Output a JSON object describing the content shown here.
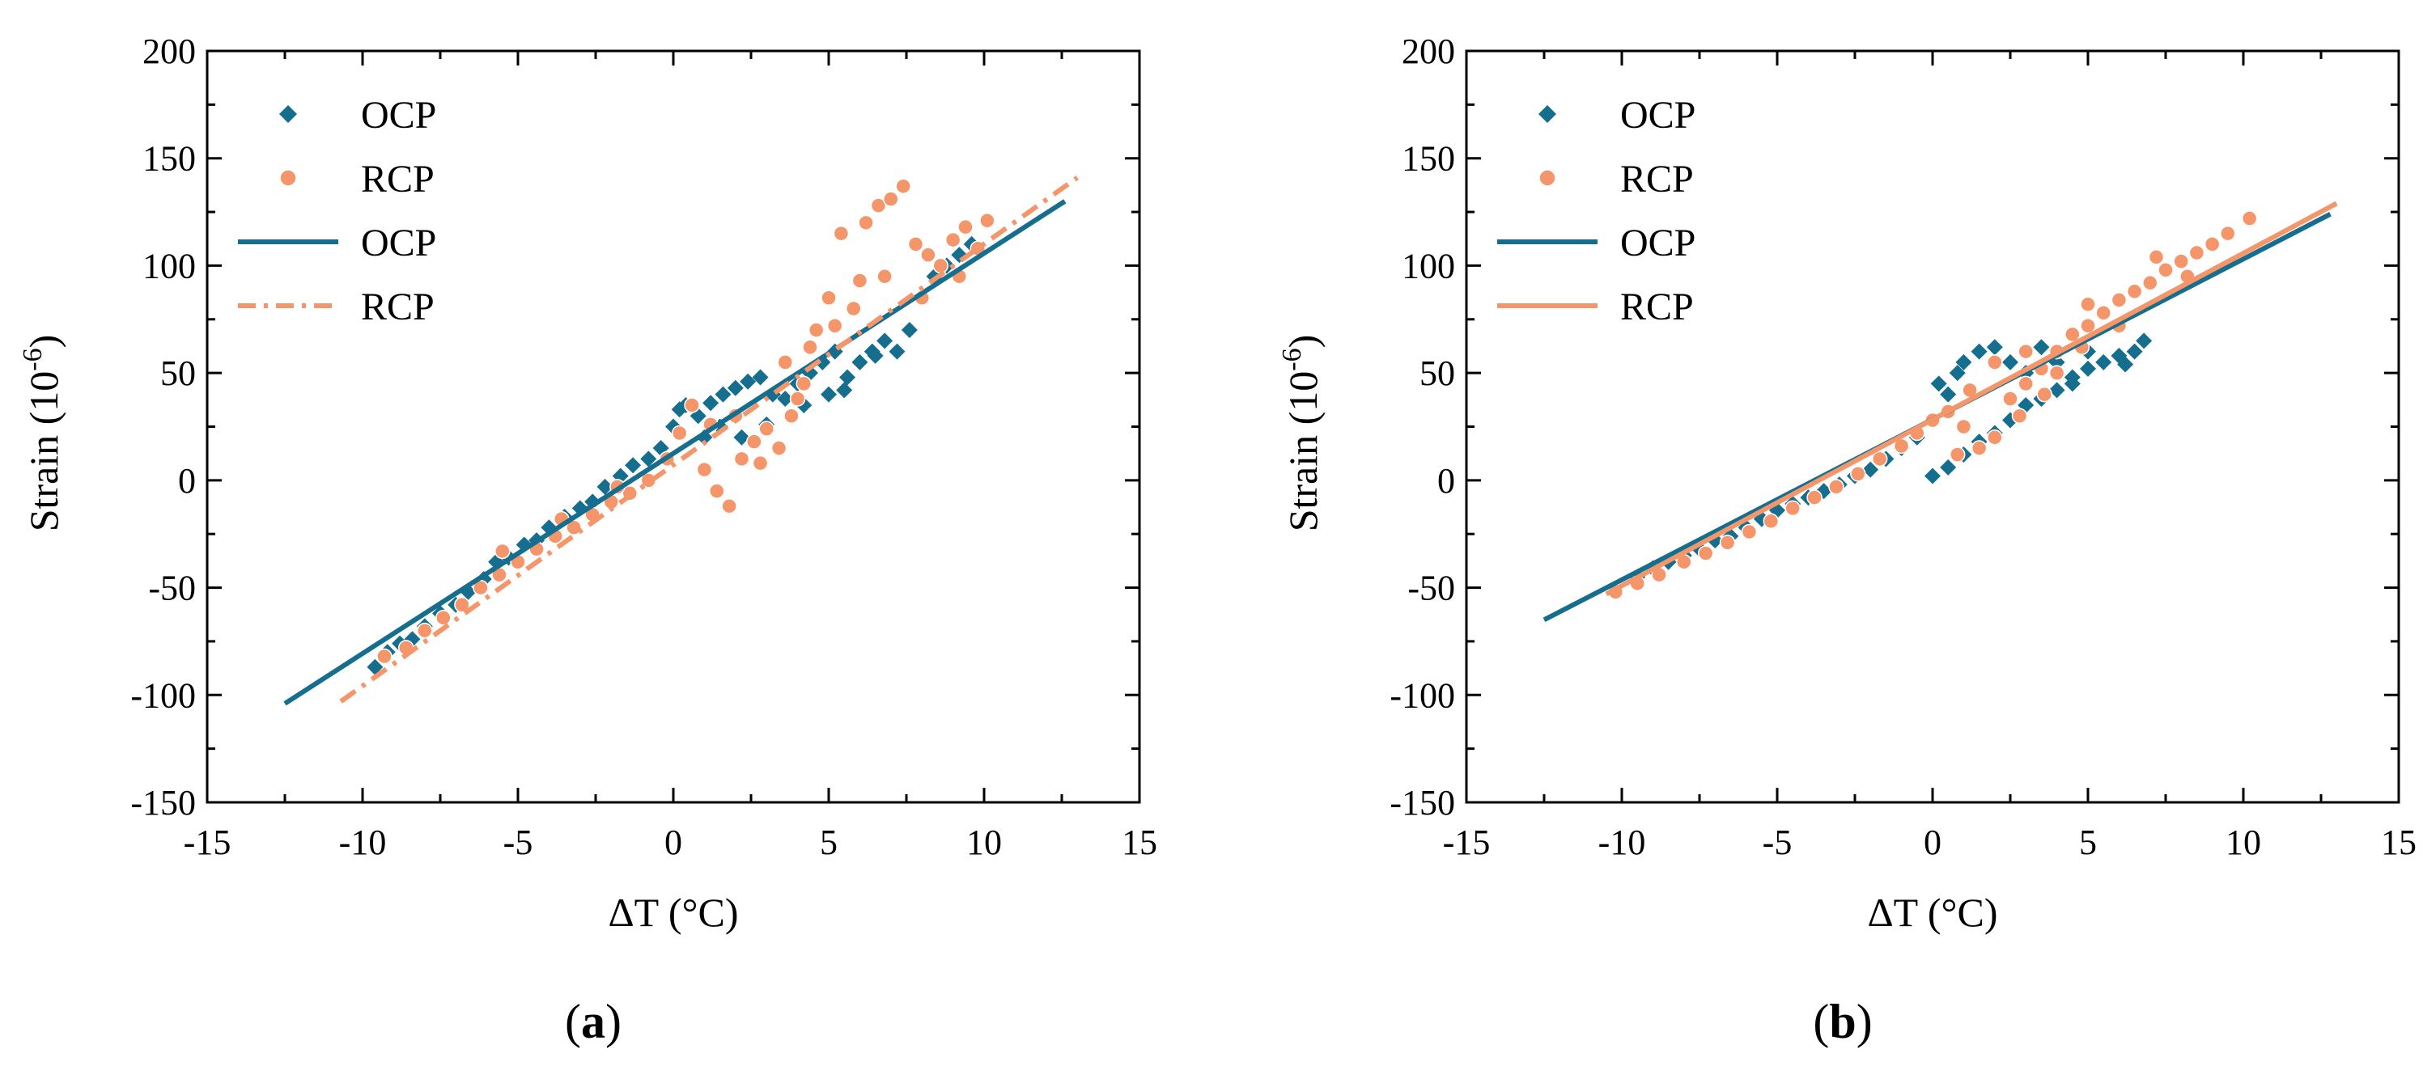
{
  "figure": {
    "panels": [
      {
        "label_open": "(",
        "label_letter": "a",
        "label_close": ")"
      },
      {
        "label_open": "(",
        "label_letter": "b",
        "label_close": ")"
      }
    ]
  },
  "colors": {
    "ocp": "#166E8E",
    "rcp": "#F4956A",
    "axis": "#000000"
  },
  "chart_data": [
    {
      "type": "scatter",
      "panel": "a",
      "xlabel": "ΔT (°C)",
      "ylabel_base": "Strain (10",
      "ylabel_exp": "-6",
      "ylabel_close": ")",
      "xlim": [
        -15,
        15
      ],
      "ylim": [
        -150,
        200
      ],
      "xticks": [
        -15,
        -10,
        -5,
        0,
        5,
        10,
        15
      ],
      "yticks": [
        -150,
        -100,
        -50,
        0,
        50,
        100,
        150,
        200
      ],
      "legend": {
        "position": "top-left",
        "entries": [
          {
            "label": "OCP",
            "kind": "marker",
            "marker": "diamond",
            "series": "ocp"
          },
          {
            "label": "RCP",
            "kind": "marker",
            "marker": "circle",
            "series": "rcp"
          },
          {
            "label": "OCP",
            "kind": "line",
            "style": "solid",
            "series": "ocp"
          },
          {
            "label": "RCP",
            "kind": "line",
            "style": "dashdot",
            "series": "rcp"
          }
        ]
      },
      "series": [
        {
          "name": "OCP",
          "kind": "scatter",
          "marker": "diamond",
          "points": [
            [
              -9.6,
              -87
            ],
            [
              -9.2,
              -80
            ],
            [
              -8.8,
              -76
            ],
            [
              -8.4,
              -74
            ],
            [
              -8.0,
              -68
            ],
            [
              -7.5,
              -62
            ],
            [
              -7.0,
              -58
            ],
            [
              -6.6,
              -52
            ],
            [
              -6.1,
              -46
            ],
            [
              -5.7,
              -38
            ],
            [
              -5.3,
              -36
            ],
            [
              -4.8,
              -30
            ],
            [
              -4.4,
              -28
            ],
            [
              -4.0,
              -22
            ],
            [
              -3.5,
              -17
            ],
            [
              -3.0,
              -13
            ],
            [
              -2.6,
              -10
            ],
            [
              -2.2,
              -3
            ],
            [
              -1.7,
              2
            ],
            [
              -1.3,
              7
            ],
            [
              -0.8,
              10
            ],
            [
              -0.4,
              15
            ],
            [
              0.0,
              25
            ],
            [
              0.2,
              33
            ],
            [
              0.4,
              35
            ],
            [
              0.8,
              30
            ],
            [
              1.2,
              36
            ],
            [
              1.6,
              40
            ],
            [
              2.0,
              43
            ],
            [
              2.4,
              46
            ],
            [
              2.8,
              48
            ],
            [
              3.2,
              40
            ],
            [
              3.6,
              38
            ],
            [
              4.0,
              45
            ],
            [
              4.4,
              50
            ],
            [
              4.8,
              55
            ],
            [
              5.2,
              60
            ],
            [
              5.6,
              48
            ],
            [
              6.0,
              55
            ],
            [
              6.4,
              60
            ],
            [
              6.8,
              65
            ],
            [
              7.2,
              60
            ],
            [
              7.6,
              70
            ],
            [
              8.0,
              85
            ],
            [
              8.4,
              95
            ],
            [
              8.8,
              100
            ],
            [
              9.2,
              105
            ],
            [
              9.6,
              110
            ],
            [
              1.0,
              20
            ],
            [
              1.5,
              25
            ],
            [
              2.2,
              20
            ],
            [
              3.0,
              26
            ],
            [
              4.2,
              35
            ],
            [
              5.0,
              40
            ],
            [
              5.5,
              42
            ],
            [
              6.5,
              58
            ]
          ]
        },
        {
          "name": "RCP",
          "kind": "scatter",
          "marker": "circle",
          "points": [
            [
              -9.3,
              -82
            ],
            [
              -8.6,
              -78
            ],
            [
              -8.0,
              -70
            ],
            [
              -7.4,
              -64
            ],
            [
              -6.8,
              -58
            ],
            [
              -6.2,
              -50
            ],
            [
              -5.6,
              -44
            ],
            [
              -5.0,
              -38
            ],
            [
              -4.4,
              -32
            ],
            [
              -3.8,
              -26
            ],
            [
              -3.2,
              -22
            ],
            [
              -2.6,
              -16
            ],
            [
              -2.0,
              -10
            ],
            [
              -1.4,
              -6
            ],
            [
              -0.8,
              0
            ],
            [
              -0.2,
              10
            ],
            [
              0.2,
              22
            ],
            [
              0.6,
              35
            ],
            [
              1.0,
              5
            ],
            [
              1.4,
              -5
            ],
            [
              1.8,
              -12
            ],
            [
              2.2,
              10
            ],
            [
              2.6,
              18
            ],
            [
              3.0,
              24
            ],
            [
              3.4,
              15
            ],
            [
              3.8,
              30
            ],
            [
              4.2,
              45
            ],
            [
              4.6,
              70
            ],
            [
              5.0,
              85
            ],
            [
              5.4,
              115
            ],
            [
              5.8,
              80
            ],
            [
              6.2,
              120
            ],
            [
              6.6,
              128
            ],
            [
              7.0,
              131
            ],
            [
              7.4,
              137
            ],
            [
              7.8,
              110
            ],
            [
              8.2,
              105
            ],
            [
              8.6,
              100
            ],
            [
              9.0,
              112
            ],
            [
              9.4,
              118
            ],
            [
              9.8,
              108
            ],
            [
              10.1,
              121
            ],
            [
              -5.5,
              -33
            ],
            [
              -3.6,
              -18
            ],
            [
              -1.8,
              -3
            ],
            [
              2.0,
              30
            ],
            [
              3.6,
              55
            ],
            [
              4.4,
              62
            ],
            [
              5.2,
              72
            ],
            [
              6.0,
              93
            ],
            [
              6.8,
              95
            ],
            [
              8.0,
              85
            ],
            [
              9.2,
              95
            ],
            [
              1.2,
              26
            ],
            [
              2.8,
              8
            ],
            [
              4.0,
              38
            ]
          ]
        },
        {
          "name": "OCP",
          "kind": "line",
          "style": "solid",
          "points": [
            [
              -12.5,
              -104
            ],
            [
              12.6,
              130
            ]
          ]
        },
        {
          "name": "RCP",
          "kind": "line",
          "style": "dashdot",
          "points": [
            [
              -10.7,
              -103
            ],
            [
              13.0,
              141
            ]
          ]
        }
      ]
    },
    {
      "type": "scatter",
      "panel": "b",
      "xlabel": "ΔT (°C)",
      "ylabel_base": "Strain (10",
      "ylabel_exp": "-6",
      "ylabel_close": ")",
      "xlim": [
        -15,
        15
      ],
      "ylim": [
        -150,
        200
      ],
      "xticks": [
        -15,
        -10,
        -5,
        0,
        5,
        10,
        15
      ],
      "yticks": [
        -150,
        -100,
        -50,
        0,
        50,
        100,
        150,
        200
      ],
      "legend": {
        "position": "top-left",
        "entries": [
          {
            "label": "OCP",
            "kind": "marker",
            "marker": "diamond",
            "series": "ocp"
          },
          {
            "label": "RCP",
            "kind": "marker",
            "marker": "circle",
            "series": "rcp"
          },
          {
            "label": "OCP",
            "kind": "line",
            "style": "solid",
            "series": "ocp"
          },
          {
            "label": "RCP",
            "kind": "line",
            "style": "solid",
            "series": "rcp"
          }
        ]
      },
      "series": [
        {
          "name": "OCP",
          "kind": "scatter",
          "marker": "diamond",
          "points": [
            [
              -9.5,
              -45
            ],
            [
              -9.0,
              -41
            ],
            [
              -8.5,
              -38
            ],
            [
              -8.0,
              -35
            ],
            [
              -7.5,
              -32
            ],
            [
              -7.0,
              -28
            ],
            [
              -6.5,
              -26
            ],
            [
              -6.0,
              -22
            ],
            [
              -5.5,
              -18
            ],
            [
              -5.0,
              -14
            ],
            [
              -4.5,
              -11
            ],
            [
              -4.0,
              -8
            ],
            [
              -3.5,
              -5
            ],
            [
              -3.0,
              -2
            ],
            [
              -2.5,
              2
            ],
            [
              -2.0,
              5
            ],
            [
              -1.5,
              10
            ],
            [
              -1.0,
              15
            ],
            [
              -0.5,
              20
            ],
            [
              0.0,
              28
            ],
            [
              0.2,
              45
            ],
            [
              0.5,
              40
            ],
            [
              0.8,
              50
            ],
            [
              1.0,
              55
            ],
            [
              1.5,
              60
            ],
            [
              2.0,
              62
            ],
            [
              2.5,
              55
            ],
            [
              3.0,
              50
            ],
            [
              3.5,
              62
            ],
            [
              4.0,
              55
            ],
            [
              4.5,
              45
            ],
            [
              5.0,
              60
            ],
            [
              5.5,
              55
            ],
            [
              6.0,
              58
            ],
            [
              6.5,
              60
            ],
            [
              6.8,
              65
            ],
            [
              0.0,
              2
            ],
            [
              0.5,
              6
            ],
            [
              1.0,
              12
            ],
            [
              1.5,
              18
            ],
            [
              2.0,
              22
            ],
            [
              2.5,
              28
            ],
            [
              3.0,
              35
            ],
            [
              3.5,
              38
            ],
            [
              4.0,
              42
            ],
            [
              4.5,
              48
            ],
            [
              5.0,
              52
            ],
            [
              6.2,
              54
            ]
          ]
        },
        {
          "name": "RCP",
          "kind": "scatter",
          "marker": "circle",
          "points": [
            [
              -10.2,
              -52
            ],
            [
              -9.5,
              -48
            ],
            [
              -8.8,
              -44
            ],
            [
              -8.0,
              -38
            ],
            [
              -7.3,
              -34
            ],
            [
              -6.6,
              -29
            ],
            [
              -5.9,
              -24
            ],
            [
              -5.2,
              -19
            ],
            [
              -4.5,
              -13
            ],
            [
              -3.8,
              -8
            ],
            [
              -3.1,
              -3
            ],
            [
              -2.4,
              3
            ],
            [
              -1.7,
              10
            ],
            [
              -1.0,
              16
            ],
            [
              -0.5,
              22
            ],
            [
              0.0,
              28
            ],
            [
              0.5,
              32
            ],
            [
              1.0,
              25
            ],
            [
              1.5,
              15
            ],
            [
              2.0,
              20
            ],
            [
              2.5,
              38
            ],
            [
              3.0,
              45
            ],
            [
              3.5,
              52
            ],
            [
              4.0,
              60
            ],
            [
              4.5,
              68
            ],
            [
              5.0,
              72
            ],
            [
              5.5,
              78
            ],
            [
              6.0,
              84
            ],
            [
              6.5,
              88
            ],
            [
              7.0,
              92
            ],
            [
              7.5,
              98
            ],
            [
              8.0,
              102
            ],
            [
              8.5,
              106
            ],
            [
              9.0,
              110
            ],
            [
              9.5,
              115
            ],
            [
              10.2,
              122
            ],
            [
              2.0,
              55
            ],
            [
              3.0,
              60
            ],
            [
              4.0,
              50
            ],
            [
              5.0,
              82
            ],
            [
              6.0,
              72
            ],
            [
              7.2,
              104
            ],
            [
              1.2,
              42
            ],
            [
              2.8,
              30
            ],
            [
              4.8,
              62
            ],
            [
              0.8,
              12
            ],
            [
              3.6,
              40
            ],
            [
              8.2,
              95
            ]
          ]
        },
        {
          "name": "OCP",
          "kind": "line",
          "style": "solid",
          "points": [
            [
              -12.5,
              -65
            ],
            [
              12.8,
              124
            ]
          ]
        },
        {
          "name": "RCP",
          "kind": "line",
          "style": "solid",
          "points": [
            [
              -10.5,
              -53
            ],
            [
              13.0,
              129
            ]
          ]
        }
      ]
    }
  ]
}
